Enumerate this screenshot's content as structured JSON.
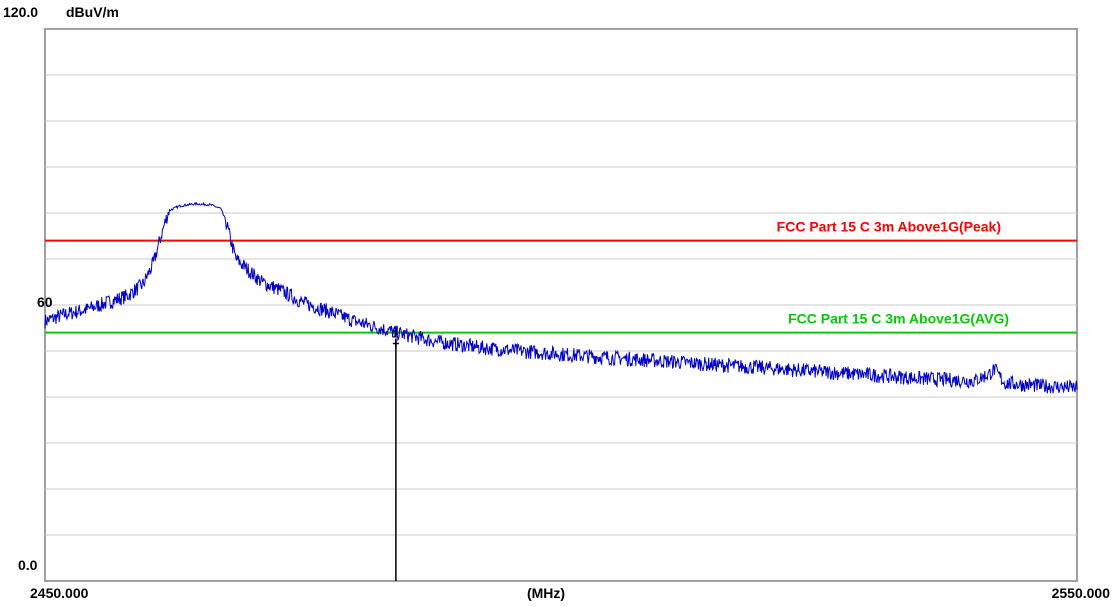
{
  "chart_data": {
    "type": "line",
    "title": "",
    "xlabel": "(MHz)",
    "ylabel": "dBuV/m",
    "xlim": [
      2450.0,
      2550.0
    ],
    "ylim": [
      0.0,
      120.0
    ],
    "grid": true,
    "y_tick_labels": {
      "top": "120.0",
      "mid": "60",
      "bottom": "0.0"
    },
    "x_tick_labels": {
      "left": "2450.000",
      "right": "2550.000"
    },
    "limits": [
      {
        "name": "FCC Part 15 C 3m  Above1G(Peak)",
        "value": 74.0,
        "color": "#ff0000"
      },
      {
        "name": "FCC Part 15 C 3m  Above1G(AVG)",
        "value": 54.0,
        "color": "#00cc00"
      }
    ],
    "marker": {
      "label": "1",
      "x": 2484.0,
      "y": 52.5
    },
    "series": [
      {
        "color": "#0000cc",
        "points": [
          [
            2450.0,
            56.5
          ],
          [
            2452.0,
            58.0
          ],
          [
            2454.0,
            59.0
          ],
          [
            2456.0,
            60.5
          ],
          [
            2458.0,
            62.0
          ],
          [
            2459.5,
            64.5
          ],
          [
            2460.5,
            69.0
          ],
          [
            2461.0,
            73.0
          ],
          [
            2461.5,
            77.0
          ],
          [
            2462.0,
            80.5
          ],
          [
            2463.0,
            81.5
          ],
          [
            2464.5,
            82.0
          ],
          [
            2466.0,
            81.8
          ],
          [
            2467.0,
            81.0
          ],
          [
            2467.5,
            78.5
          ],
          [
            2468.0,
            74.0
          ],
          [
            2468.5,
            70.0
          ],
          [
            2469.5,
            68.0
          ],
          [
            2471.0,
            65.0
          ],
          [
            2473.0,
            63.0
          ],
          [
            2475.0,
            60.5
          ],
          [
            2477.0,
            59.0
          ],
          [
            2480.0,
            56.5
          ],
          [
            2484.0,
            54.0
          ],
          [
            2488.0,
            52.0
          ],
          [
            2492.0,
            50.8
          ],
          [
            2496.0,
            50.0
          ],
          [
            2500.0,
            49.3
          ],
          [
            2505.0,
            48.5
          ],
          [
            2510.0,
            47.8
          ],
          [
            2515.0,
            47.0
          ],
          [
            2520.0,
            46.3
          ],
          [
            2525.0,
            45.5
          ],
          [
            2530.0,
            44.8
          ],
          [
            2535.0,
            44.0
          ],
          [
            2540.0,
            43.5
          ],
          [
            2541.5,
            45.0
          ],
          [
            2542.0,
            46.0
          ],
          [
            2542.5,
            44.5
          ],
          [
            2543.0,
            43.0
          ],
          [
            2546.0,
            42.5
          ],
          [
            2550.0,
            42.0
          ]
        ]
      }
    ]
  }
}
